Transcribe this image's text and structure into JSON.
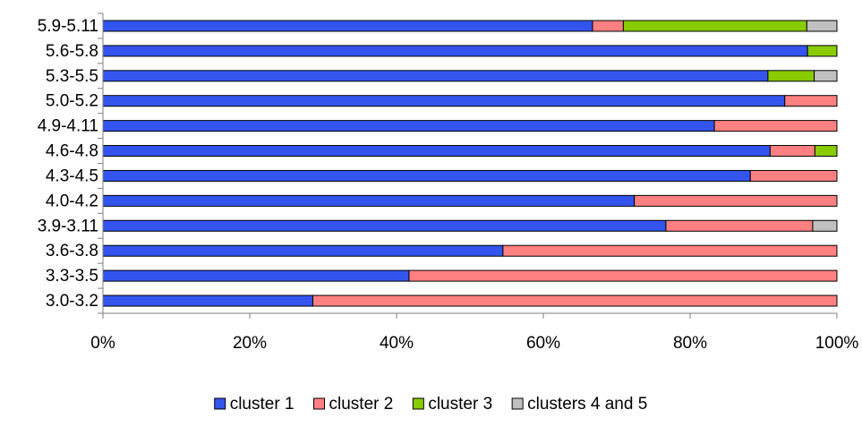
{
  "chart_data": {
    "type": "bar",
    "orientation": "horizontal",
    "stacked": "percent",
    "title": "",
    "xlabel": "",
    "ylabel": "",
    "xlim": [
      0,
      100
    ],
    "x_ticks": [
      "0%",
      "20%",
      "40%",
      "60%",
      "80%",
      "100%"
    ],
    "x_tick_values": [
      0,
      20,
      40,
      60,
      80,
      100
    ],
    "grid": false,
    "legend_position": "bottom",
    "categories": [
      "5.9-5.11",
      "5.6-5.8",
      "5.3-5.5",
      "5.0-5.2",
      "4.9-4.11",
      "4.6-4.8",
      "4.3-4.5",
      "4.0-4.2",
      "3.9-3.11",
      "3.6-3.8",
      "3.3-3.5",
      "3.0-3.2"
    ],
    "series": [
      {
        "name": "cluster 1",
        "color": "#3355ee",
        "values": [
          66.7,
          96.0,
          90.6,
          92.9,
          83.3,
          90.9,
          88.2,
          72.4,
          76.7,
          54.5,
          41.7,
          28.6
        ]
      },
      {
        "name": "cluster 2",
        "color": "#ff8080",
        "values": [
          4.2,
          0.0,
          0.0,
          7.1,
          16.7,
          6.1,
          11.8,
          27.6,
          20.0,
          45.5,
          58.3,
          71.4
        ]
      },
      {
        "name": "cluster 3",
        "color": "#88cc00",
        "values": [
          25.0,
          4.0,
          6.3,
          0.0,
          0.0,
          3.0,
          0.0,
          0.0,
          0.0,
          0.0,
          0.0,
          0.0
        ]
      },
      {
        "name": "clusters 4 and 5",
        "color": "#c0c0c0",
        "values": [
          4.1,
          0.0,
          3.1,
          0.0,
          0.0,
          0.0,
          0.0,
          0.0,
          3.3,
          0.0,
          0.0,
          0.0
        ]
      }
    ]
  }
}
